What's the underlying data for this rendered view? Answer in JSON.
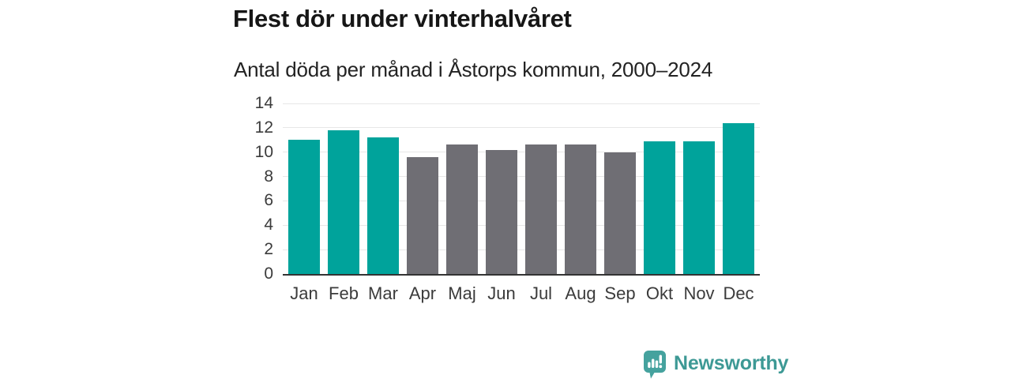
{
  "header": {
    "title": "Flest dör under vinterhalvåret",
    "subtitle": "Antal döda per månad i Åstorps kommun, 2000–2024"
  },
  "chart_data": {
    "type": "bar",
    "title": "Flest dör under vinterhalvåret",
    "subtitle": "Antal döda per månad i Åstorps kommun, 2000–2024",
    "categories": [
      "Jan",
      "Feb",
      "Mar",
      "Apr",
      "Maj",
      "Jun",
      "Jul",
      "Aug",
      "Sep",
      "Okt",
      "Nov",
      "Dec"
    ],
    "values": [
      11.0,
      11.8,
      11.2,
      9.6,
      10.6,
      10.2,
      10.6,
      10.6,
      10.0,
      10.9,
      10.9,
      12.4
    ],
    "bar_groups": [
      "winter",
      "winter",
      "winter",
      "summer",
      "summer",
      "summer",
      "summer",
      "summer",
      "summer",
      "winter",
      "winter",
      "winter"
    ],
    "colors": {
      "winter": "#00a39b",
      "summer": "#6f6e74"
    },
    "xlabel": "",
    "ylabel": "",
    "ylim": [
      0,
      14
    ],
    "yticks": [
      0,
      2,
      4,
      6,
      8,
      10,
      12,
      14
    ],
    "grid": true,
    "legend": false
  },
  "footer": {
    "brand": "Newsworthy",
    "brand_color": "#3d9995",
    "logo_icon": "bar-chart-speech-bubble-icon",
    "logo_icon_color": "#45a29e"
  }
}
